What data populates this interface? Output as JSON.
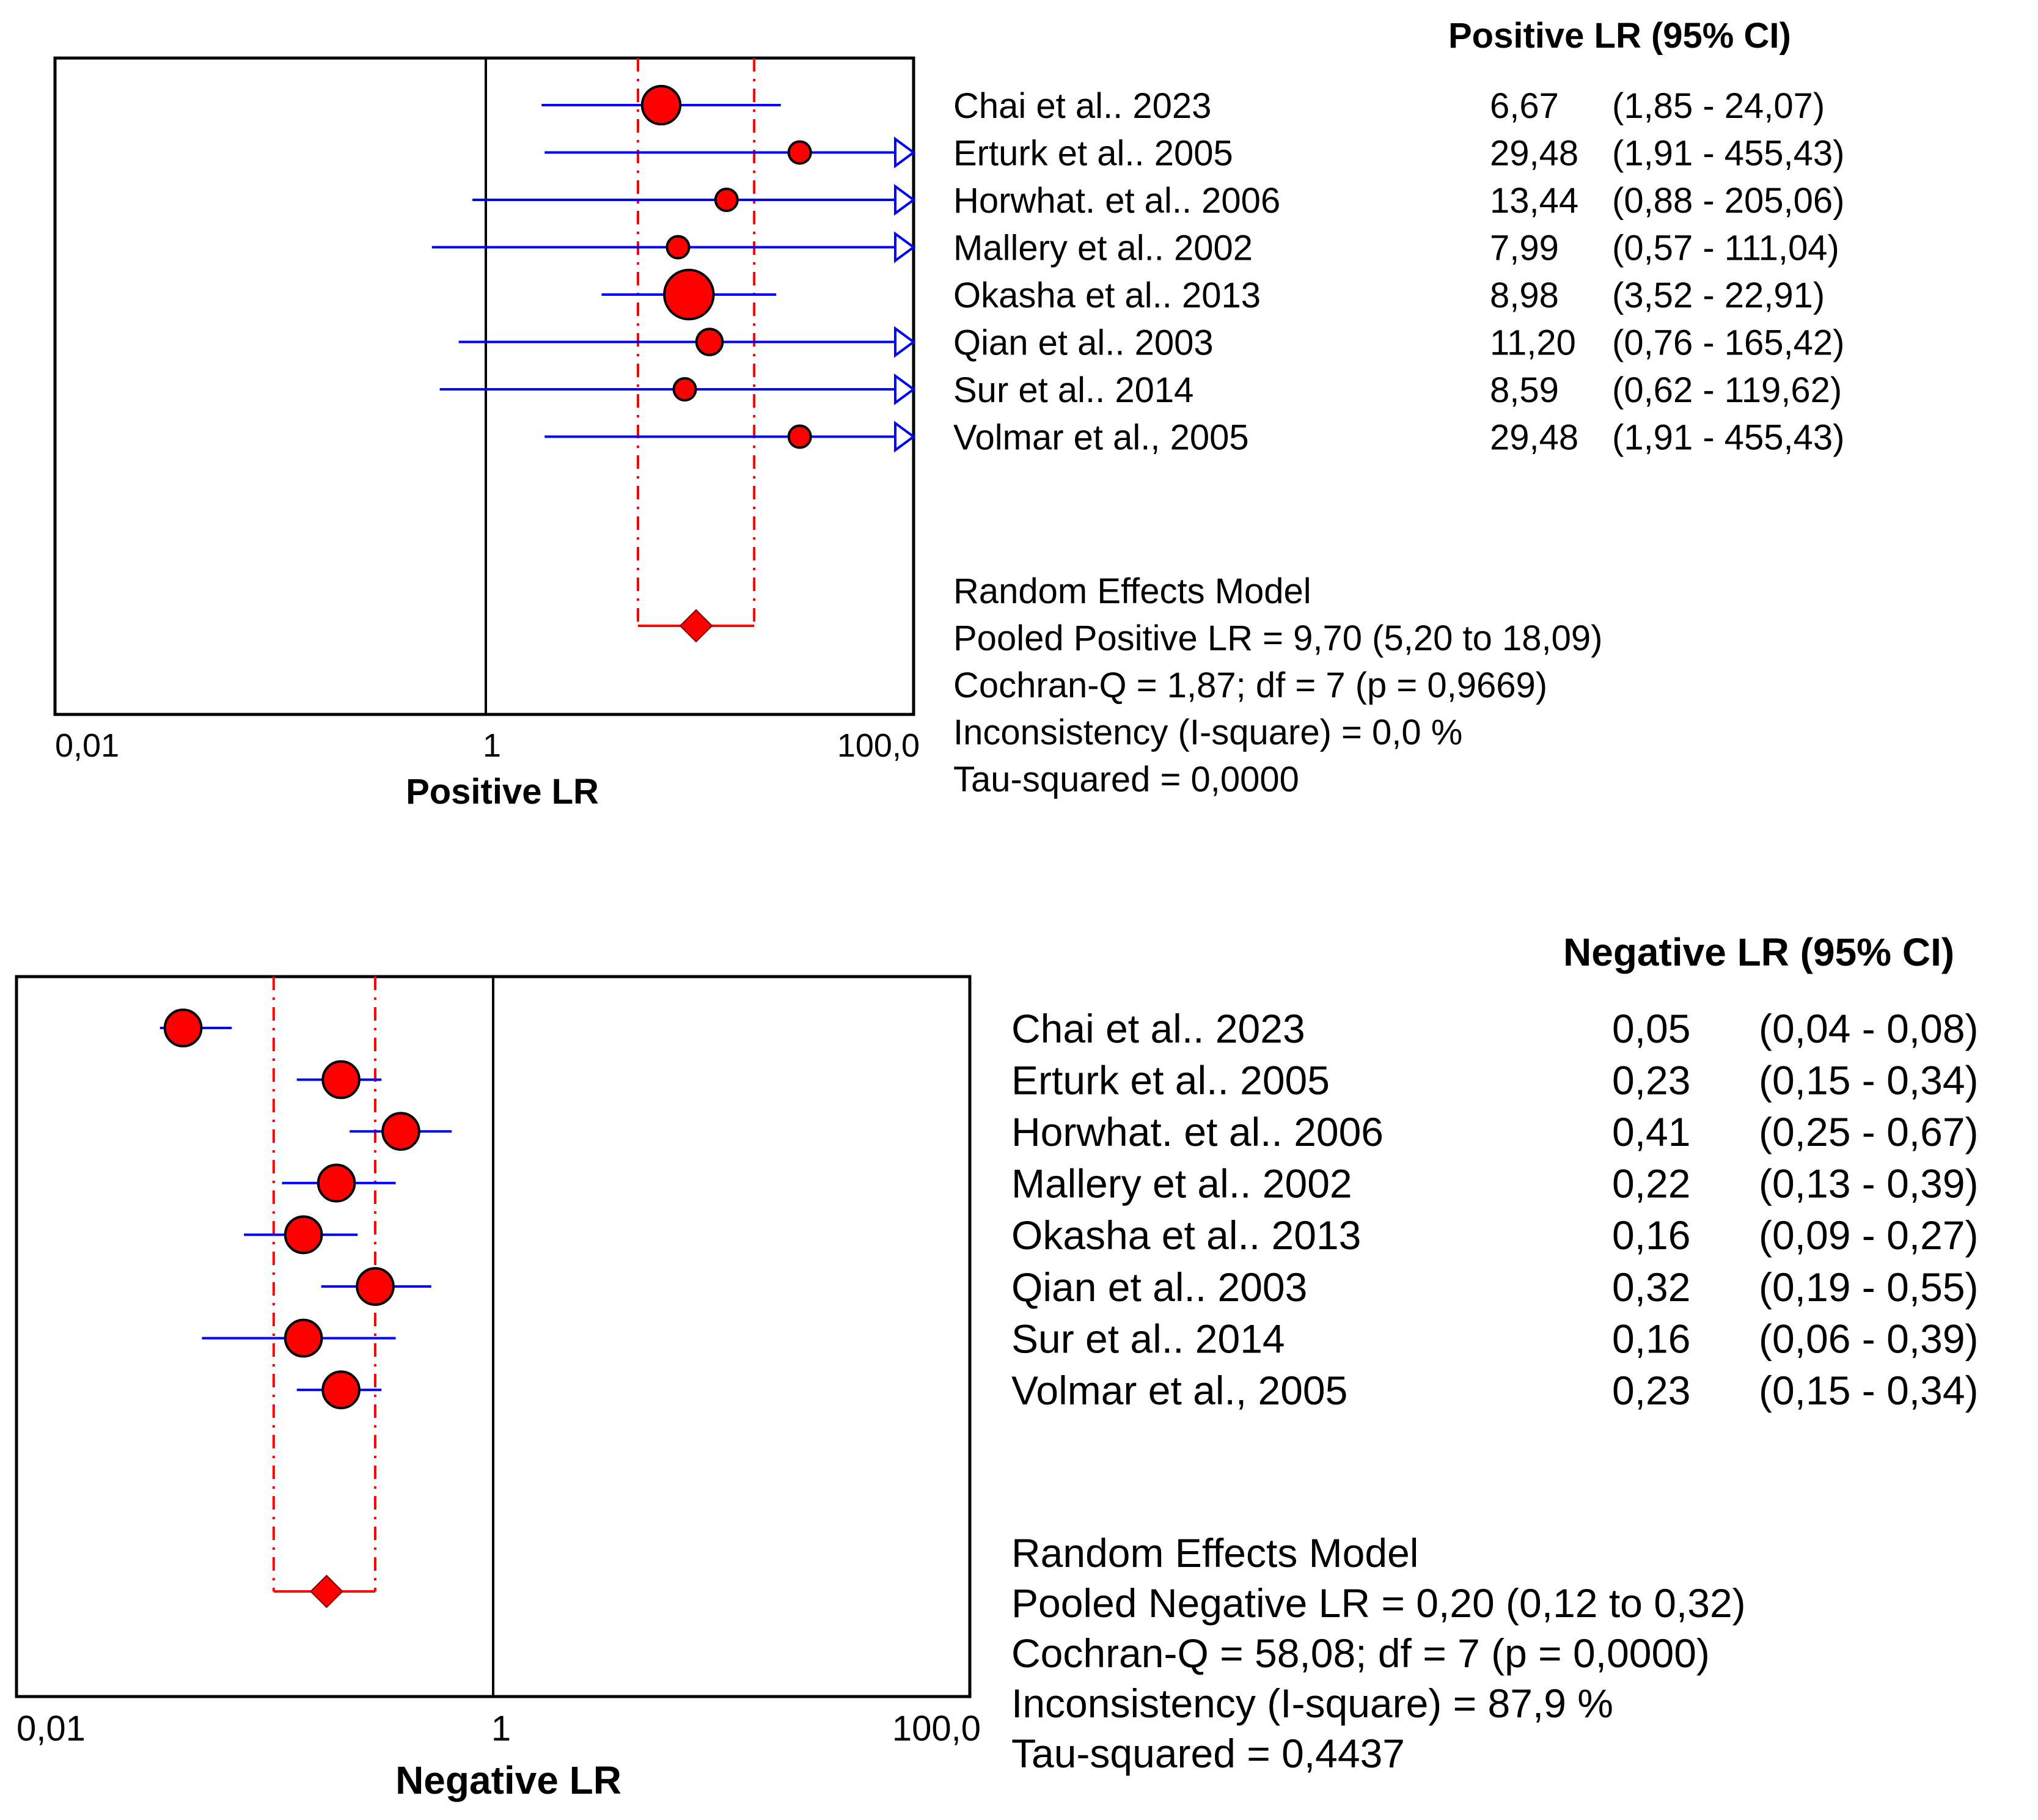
{
  "chart_data": [
    {
      "type": "forest",
      "title": "Positive LR (95% CI)",
      "xlabel": "Positive LR",
      "x_scale": "log",
      "xlim": [
        0.01,
        100
      ],
      "tick_labels": [
        "0,01",
        "1",
        "100,0"
      ],
      "studies": [
        {
          "name": "Chai et al.. 2023",
          "est": 6.67,
          "lo": 1.85,
          "hi": 24.07,
          "est_label": "6,67",
          "ci_label": "(1,85 - 24,07)",
          "weight": 3
        },
        {
          "name": "Erturk et al.. 2005",
          "est": 29.48,
          "lo": 1.91,
          "hi": 455.43,
          "est_label": "29,48",
          "ci_label": "(1,91 - 455,43)",
          "weight": 1
        },
        {
          "name": "Horwhat. et al.. 2006",
          "est": 13.44,
          "lo": 0.88,
          "hi": 205.06,
          "est_label": "13,44",
          "ci_label": "(0,88 - 205,06)",
          "weight": 1
        },
        {
          "name": "Mallery et al.. 2002",
          "est": 7.99,
          "lo": 0.57,
          "hi": 111.04,
          "est_label": "7,99",
          "ci_label": "(0,57 - 111,04)",
          "weight": 1
        },
        {
          "name": "Okasha et al.. 2013",
          "est": 8.98,
          "lo": 3.52,
          "hi": 22.91,
          "est_label": "8,98",
          "ci_label": "(3,52 - 22,91)",
          "weight": 5
        },
        {
          "name": "Qian et al.. 2003",
          "est": 11.2,
          "lo": 0.76,
          "hi": 165.42,
          "est_label": "11,20",
          "ci_label": "(0,76 - 165,42)",
          "weight": 1.4
        },
        {
          "name": "Sur et al.. 2014",
          "est": 8.59,
          "lo": 0.62,
          "hi": 119.62,
          "est_label": "8,59",
          "ci_label": "(0,62 - 119,62)",
          "weight": 1
        },
        {
          "name": "Volmar et al., 2005",
          "est": 29.48,
          "lo": 1.91,
          "hi": 455.43,
          "est_label": "29,48",
          "ci_label": "(1,91 - 455,43)",
          "weight": 1
        }
      ],
      "pooled": {
        "est": 9.7,
        "lo": 5.2,
        "hi": 18.09
      },
      "summary": [
        "Random Effects Model",
        "Pooled Positive LR = 9,70 (5,20 to 18,09)",
        "Cochran-Q = 1,87; df =  7 (p = 0,9669)",
        "Inconsistency (I-square) = 0,0 %",
        "Tau-squared = 0,0000"
      ],
      "colors": {
        "point": "#ff0000",
        "ci": "#0000ff",
        "pooled": "#ff0000"
      }
    },
    {
      "type": "forest",
      "title": "Negative LR (95% CI)",
      "xlabel": "Negative LR",
      "x_scale": "log",
      "xlim": [
        0.01,
        100
      ],
      "tick_labels": [
        "0,01",
        "1",
        "100,0"
      ],
      "studies": [
        {
          "name": "Chai et al.. 2023",
          "est": 0.05,
          "lo": 0.04,
          "hi": 0.08,
          "est_label": "0,05",
          "ci_label": "(0,04 - 0,08)",
          "weight": 2
        },
        {
          "name": "Erturk et al.. 2005",
          "est": 0.23,
          "lo": 0.15,
          "hi": 0.34,
          "est_label": "0,23",
          "ci_label": "(0,15 - 0,34)",
          "weight": 2
        },
        {
          "name": "Horwhat. et al.. 2006",
          "est": 0.41,
          "lo": 0.25,
          "hi": 0.67,
          "est_label": "0,41",
          "ci_label": "(0,25 - 0,67)",
          "weight": 2
        },
        {
          "name": "Mallery et al.. 2002",
          "est": 0.22,
          "lo": 0.13,
          "hi": 0.39,
          "est_label": "0,22",
          "ci_label": "(0,13 - 0,39)",
          "weight": 2
        },
        {
          "name": "Okasha et al.. 2013",
          "est": 0.16,
          "lo": 0.09,
          "hi": 0.27,
          "est_label": "0,16",
          "ci_label": "(0,09 - 0,27)",
          "weight": 2
        },
        {
          "name": "Qian et al.. 2003",
          "est": 0.32,
          "lo": 0.19,
          "hi": 0.55,
          "est_label": "0,32",
          "ci_label": "(0,19 - 0,55)",
          "weight": 2
        },
        {
          "name": "Sur et al.. 2014",
          "est": 0.16,
          "lo": 0.06,
          "hi": 0.39,
          "est_label": "0,16",
          "ci_label": "(0,06 - 0,39)",
          "weight": 2
        },
        {
          "name": " Volmar et al., 2005",
          "est": 0.23,
          "lo": 0.15,
          "hi": 0.34,
          "est_label": "0,23",
          "ci_label": "(0,15 - 0,34)",
          "weight": 2
        }
      ],
      "pooled": {
        "est": 0.2,
        "lo": 0.12,
        "hi": 0.32
      },
      "summary": [
        "Random Effects Model",
        "Pooled Negative LR = 0,20 (0,12 to 0,32)",
        "Cochran-Q = 58,08; df =  7 (p = 0,0000)",
        "Inconsistency (I-square) = 87,9 %",
        "Tau-squared = 0,4437"
      ],
      "colors": {
        "point": "#ff0000",
        "ci": "#0000ff",
        "pooled": "#ff0000"
      }
    }
  ]
}
